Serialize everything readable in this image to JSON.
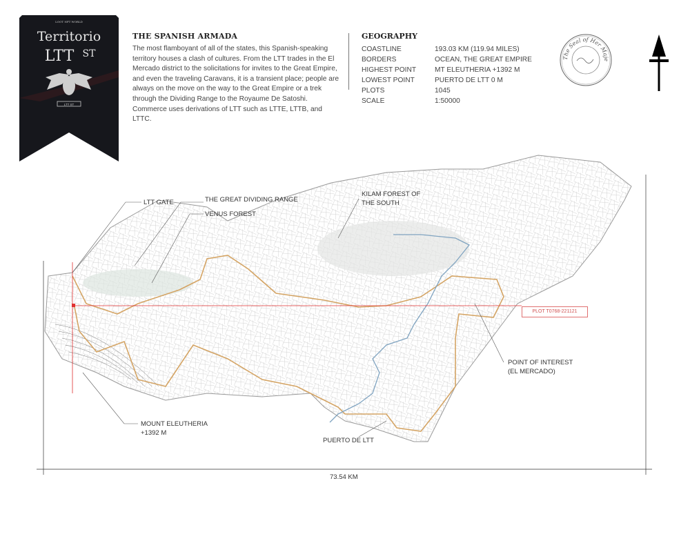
{
  "banner": {
    "brand": "LOOT NFT WORLD",
    "title_line1": "Territorio",
    "title_line2": "LTT",
    "title_suffix": "ST",
    "emblem_text": "LTT ST",
    "background": "#16171c"
  },
  "about": {
    "title": "THE SPANISH ARMADA",
    "body": "The most flamboyant of all of the states, this Spanish-speaking territory houses a clash of cultures. From the LTT trades in the El Mercado district to the solicitations for invites to the Great Empire, and even the traveling Caravans, it is a transient place; people are always on the move on the way to the Great Empire or a trek through the Dividing Range to the Royaume De Satoshi. Commerce uses derivations of LTT such as LTTE, LTTB, and LTTC."
  },
  "geography": {
    "title": "GEOGRAPHY",
    "rows": [
      {
        "key": "COASTLINE",
        "value": "193.03 KM (119.94 MILES)"
      },
      {
        "key": "BORDERS",
        "value": "OCEAN, THE GREAT EMPIRE"
      },
      {
        "key": "HIGHEST POINT",
        "value": "MT ELEUTHERIA +1392 M"
      },
      {
        "key": "LOWEST POINT",
        "value": "PUERTO DE LTT 0 M"
      },
      {
        "key": "PLOTS",
        "value": "1045"
      },
      {
        "key": "SCALE",
        "value": "1:50000"
      }
    ]
  },
  "seal": {
    "text": "The Seal of Her Majesty"
  },
  "compass": {
    "icon": "north-arrow-icon"
  },
  "map": {
    "labels": {
      "ltt_gate": "LTT GATE",
      "dividing_range": "THE GREAT DIVIDING RANGE",
      "venus_forest": "VENUS FOREST",
      "kilam_line1": "KILAM FOREST OF",
      "kilam_line2": "THE SOUTH",
      "poi_line1": "POINT OF INTEREST",
      "poi_line2": "(EL MERCADO)",
      "mount_line1": "MOUNT ELEUTHERIA",
      "mount_line2": "+1392 M",
      "puerto": "PUERTO DE LTT"
    },
    "plot_label": "PLOT T0768-221121",
    "scale_width": "73.54 KM",
    "colors": {
      "border_route": "#d4a464",
      "river": "#7fa3c0",
      "plot_marker": "#e03030",
      "outline": "#999999"
    }
  }
}
